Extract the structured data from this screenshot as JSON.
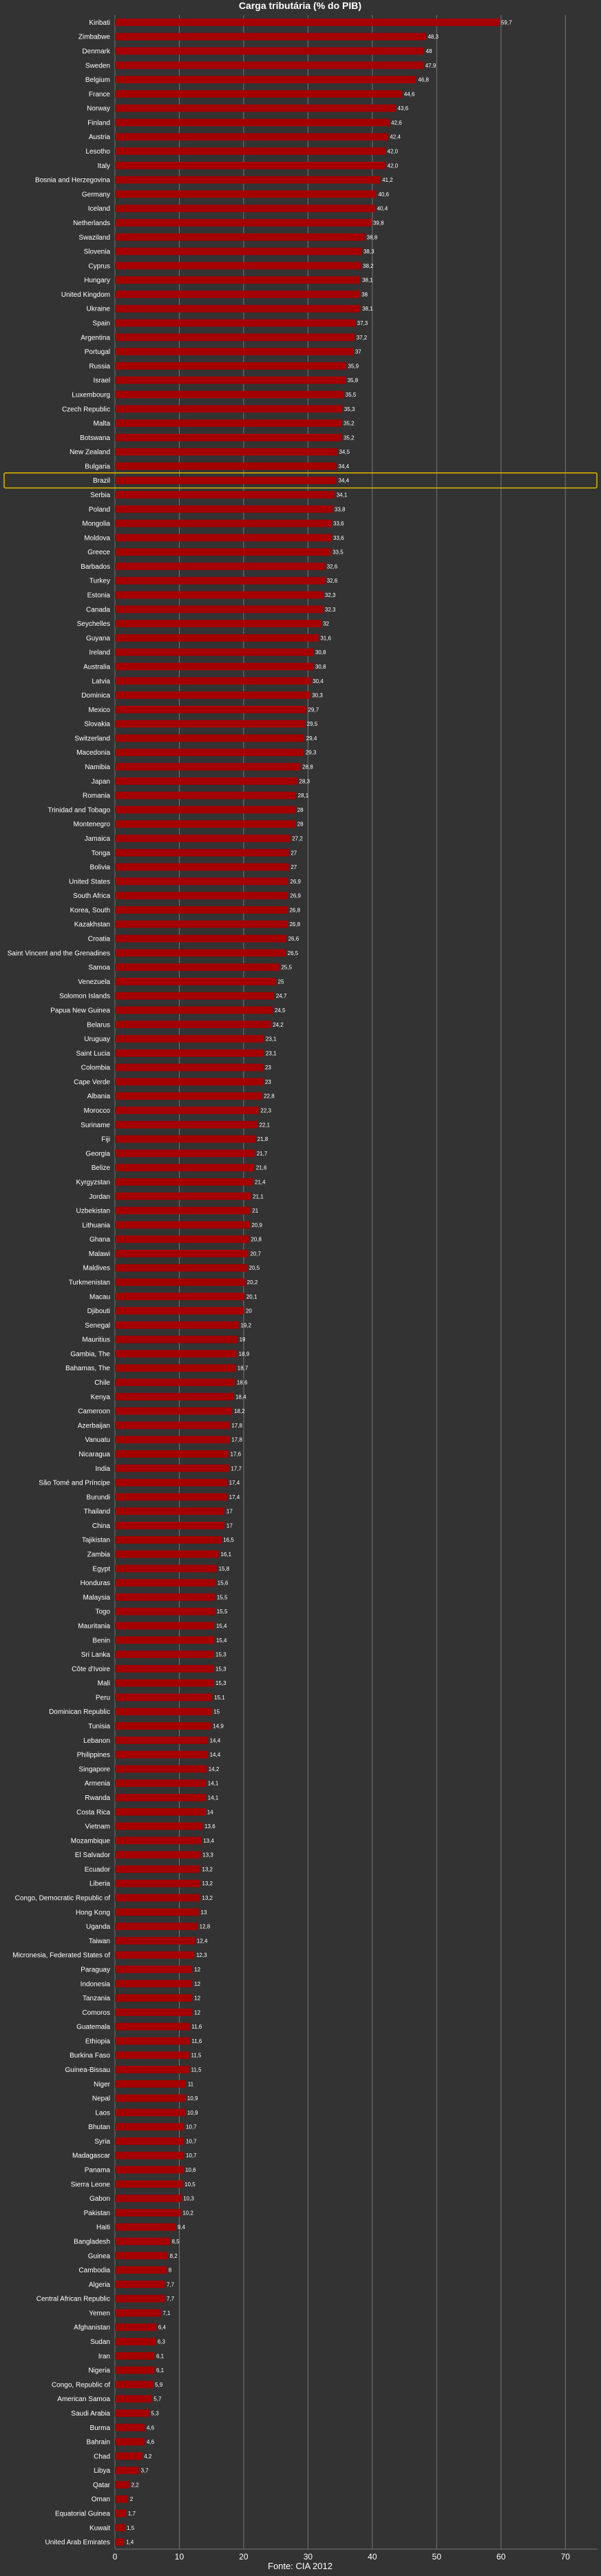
{
  "chart_data": {
    "type": "bar",
    "orientation": "horizontal",
    "title": "Carga tributária (% do PIB)",
    "source": "Fonte: CIA 2012",
    "xlim": [
      0,
      75
    ],
    "xticks": [
      0,
      10,
      20,
      30,
      40,
      50,
      60,
      70
    ],
    "grid": true,
    "colors": {
      "background": "#333333",
      "bar": "#a50000",
      "grid": "#767676",
      "text": "#ffffff",
      "highlight": "#e0b800"
    },
    "highlight": "Brazil",
    "categories": [
      "Kiribati",
      "Zimbabwe",
      "Denmark",
      "Sweden",
      "Belgium",
      "France",
      "Norway",
      "Finland",
      "Austria",
      "Lesotho",
      "Italy",
      "Bosnia and Herzegovina",
      "Germany",
      "Iceland",
      "Netherlands",
      "Swaziland",
      "Slovenia",
      "Cyprus",
      "Hungary",
      "United Kingdom",
      "Ukraine",
      "Spain",
      "Argentina",
      "Portugal",
      "Russia",
      "Israel",
      "Luxembourg",
      "Czech Republic",
      "Malta",
      "Botswana",
      "New Zealand",
      "Bulgaria",
      "Brazil",
      "Serbia",
      "Poland",
      "Mongolia",
      "Moldova",
      "Greece",
      "Barbados",
      "Turkey",
      "Estonia",
      "Canada",
      "Seychelles",
      "Guyana",
      "Ireland",
      "Australia",
      "Latvia",
      "Dominica",
      "Mexico",
      "Slovakia",
      "Switzerland",
      "Macedonia",
      "Namibia",
      "Japan",
      "Romania",
      "Trinidad and Tobago",
      "Montenegro",
      "Jamaica",
      "Tonga",
      "Bolivia",
      "United States",
      "South Africa",
      "Korea, South",
      "Kazakhstan",
      "Croatia",
      "Saint Vincent and the Grenadines",
      "Samoa",
      "Venezuela",
      "Solomon Islands",
      "Papua New Guinea",
      "Belarus",
      "Uruguay",
      "Saint Lucia",
      "Colombia",
      "Cape Verde",
      "Albania",
      "Morocco",
      "Suriname",
      "Fiji",
      "Georgia",
      "Belize",
      "Kyrgyzstan",
      "Jordan",
      "Uzbekistan",
      "Lithuania",
      "Ghana",
      "Malawi",
      "Maldives",
      "Turkmenistan",
      "Macau",
      "Djibouti",
      "Senegal",
      "Mauritius",
      "Gambia, The",
      "Bahamas, The",
      "Chile",
      "Kenya",
      "Cameroon",
      "Azerbaijan",
      "Vanuatu",
      "Nicaragua",
      "India",
      "São Tomé and Príncipe",
      "Burundi",
      "Thailand",
      "China",
      "Tajikistan",
      "Zambia",
      "Egypt",
      "Honduras",
      "Malaysia",
      "Togo",
      "Mauritania",
      "Benin",
      "Sri Lanka",
      "Côte d'Ivoire",
      "Mali",
      "Peru",
      "Dominican Republic",
      "Tunisia",
      "Lebanon",
      "Philippines",
      "Singapore",
      "Armenia",
      "Rwanda",
      "Costa Rica",
      "Vietnam",
      "Mozambique",
      "El Salvador",
      "Ecuador",
      "Liberia",
      "Congo, Democratic Republic of",
      "Hong Kong",
      "Uganda",
      "Taiwan",
      "Micronesia, Federated States of",
      "Paraguay",
      "Indonesia",
      "Tanzania",
      "Comoros",
      "Guatemala",
      "Ethiopia",
      "Burkina Faso",
      "Guinea-Bissau",
      "Niger",
      "Nepal",
      "Laos",
      "Bhutan",
      "Syria",
      "Madagascar",
      "Panama",
      "Sierra Leone",
      "Gabon",
      "Pakistan",
      "Haiti",
      "Bangladesh",
      "Guinea",
      "Cambodia",
      "Algeria",
      "Central African Republic",
      "Yemen",
      "Afghanistan",
      "Sudan",
      "Iran",
      "Nigeria",
      "Congo, Republic of",
      "American Samoa",
      "Saudi Arabia",
      "Burma",
      "Bahrain",
      "Chad",
      "Libya",
      "Qatar",
      "Oman",
      "Equatorial Guinea",
      "Kuwait",
      "United Arab Emirates"
    ],
    "value_labels": [
      "59,7",
      "48,3",
      "48",
      "47,9",
      "46,8",
      "44,6",
      "43,6",
      "42,6",
      "42,4",
      "42,0",
      "42,0",
      "41,2",
      "40,6",
      "40,4",
      "39,8",
      "38,8",
      "38,3",
      "38,2",
      "38,1",
      "38",
      "38,1",
      "37,3",
      "37,2",
      "37",
      "35,9",
      "35,8",
      "35,5",
      "35,3",
      "35,2",
      "35,2",
      "34,5",
      "34,4",
      "34,4",
      "34,1",
      "33,8",
      "33,6",
      "33,6",
      "33,5",
      "32,6",
      "32,6",
      "32,3",
      "32,3",
      "32",
      "31,6",
      "30,8",
      "30,8",
      "30,4",
      "30,3",
      "29,7",
      "29,5",
      "29,4",
      "29,3",
      "28,8",
      "28,3",
      "28,1",
      "28",
      "28",
      "27,2",
      "27",
      "27",
      "26,9",
      "26,9",
      "26,8",
      "26,8",
      "26,6",
      "26,5",
      "25,5",
      "25",
      "24,7",
      "24,5",
      "24,2",
      "23,1",
      "23,1",
      "23",
      "23",
      "22,8",
      "22,3",
      "22,1",
      "21,8",
      "21,7",
      "21,6",
      "21,4",
      "21,1",
      "21",
      "20,9",
      "20,8",
      "20,7",
      "20,5",
      "20,2",
      "20,1",
      "20",
      "19,2",
      "19",
      "18,9",
      "18,7",
      "18,6",
      "18,4",
      "18,2",
      "17,8",
      "17,8",
      "17,6",
      "17,7",
      "17,4",
      "17,4",
      "17",
      "17",
      "16,5",
      "16,1",
      "15,8",
      "15,6",
      "15,5",
      "15,5",
      "15,4",
      "15,4",
      "15,3",
      "15,3",
      "15,3",
      "15,1",
      "15",
      "14,9",
      "14,4",
      "14,4",
      "14,2",
      "14,1",
      "14,1",
      "14",
      "13,6",
      "13,4",
      "13,3",
      "13,2",
      "13,2",
      "13,2",
      "13",
      "12,8",
      "12,4",
      "12,3",
      "12",
      "12",
      "12",
      "12",
      "11,6",
      "11,6",
      "11,5",
      "11,5",
      "11",
      "10,9",
      "10,9",
      "10,7",
      "10,7",
      "10,7",
      "10,6",
      "10,5",
      "10,3",
      "10,2",
      "9,4",
      "8,5",
      "8,2",
      "8",
      "7,7",
      "7,7",
      "7,1",
      "6,4",
      "6,3",
      "6,1",
      "6,1",
      "5,9",
      "5,7",
      "5,3",
      "4,6",
      "4,6",
      "4,2",
      "3,7",
      "2,2",
      "2",
      "1,7",
      "1,5",
      "1,4"
    ],
    "values": [
      59.7,
      48.3,
      48,
      47.9,
      46.8,
      44.6,
      43.6,
      42.6,
      42.4,
      42.0,
      42.0,
      41.2,
      40.6,
      40.4,
      39.8,
      38.8,
      38.3,
      38.2,
      38.1,
      38,
      38.1,
      37.3,
      37.2,
      37,
      35.9,
      35.8,
      35.5,
      35.3,
      35.2,
      35.2,
      34.5,
      34.4,
      34.4,
      34.1,
      33.8,
      33.6,
      33.6,
      33.5,
      32.6,
      32.6,
      32.3,
      32.3,
      32,
      31.6,
      30.8,
      30.8,
      30.4,
      30.3,
      29.7,
      29.5,
      29.4,
      29.3,
      28.8,
      28.3,
      28.1,
      28,
      28,
      27.2,
      27,
      27,
      26.9,
      26.9,
      26.8,
      26.8,
      26.6,
      26.5,
      25.5,
      25,
      24.7,
      24.5,
      24.2,
      23.1,
      23.1,
      23,
      23,
      22.8,
      22.3,
      22.1,
      21.8,
      21.7,
      21.6,
      21.4,
      21.1,
      21,
      20.9,
      20.8,
      20.7,
      20.5,
      20.2,
      20.1,
      20,
      19.2,
      19,
      18.9,
      18.7,
      18.6,
      18.4,
      18.2,
      17.8,
      17.8,
      17.6,
      17.7,
      17.4,
      17.4,
      17,
      17,
      16.5,
      16.1,
      15.8,
      15.6,
      15.5,
      15.5,
      15.4,
      15.4,
      15.3,
      15.3,
      15.3,
      15.1,
      15,
      14.9,
      14.4,
      14.4,
      14.2,
      14.1,
      14.1,
      14,
      13.6,
      13.4,
      13.3,
      13.2,
      13.2,
      13.2,
      13,
      12.8,
      12.4,
      12.3,
      12,
      12,
      12,
      12,
      11.6,
      11.6,
      11.5,
      11.5,
      11,
      10.9,
      10.9,
      10.7,
      10.7,
      10.7,
      10.6,
      10.5,
      10.3,
      10.2,
      9.4,
      8.5,
      8.2,
      8,
      7.7,
      7.7,
      7.1,
      6.4,
      6.3,
      6.1,
      6.1,
      5.9,
      5.7,
      5.3,
      4.6,
      4.6,
      4.2,
      3.7,
      2.2,
      2,
      1.7,
      1.5,
      1.4
    ]
  }
}
